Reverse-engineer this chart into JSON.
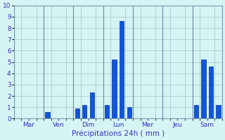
{
  "xlabel": "Précipitations 24h ( mm )",
  "ylim": [
    0,
    10
  ],
  "background_color": "#d6f4f4",
  "bar_color": "#1155dd",
  "bar_edge_color": "#003399",
  "grid_color": "#aacccc",
  "tick_label_color": "#3333bb",
  "xlabel_color": "#3333bb",
  "day_sections": [
    {
      "label": "Mar",
      "bars": [
        0.0,
        0.0
      ]
    },
    {
      "label": "Ven",
      "bars": [
        0.6,
        0.0
      ]
    },
    {
      "label": "Dim",
      "bars": [
        0.9,
        1.2,
        2.3
      ]
    },
    {
      "label": "Lun",
      "bars": [
        1.2,
        5.2,
        8.6,
        1.0
      ]
    },
    {
      "label": "Mer",
      "bars": [
        0.0,
        0.0
      ]
    },
    {
      "label": "Jeu",
      "bars": [
        0.0,
        0.0,
        0.0
      ]
    },
    {
      "label": "Sam",
      "bars": [
        1.2,
        5.2,
        4.6,
        1.2
      ]
    }
  ],
  "slots_per_section": 4,
  "bar_width": 0.6
}
